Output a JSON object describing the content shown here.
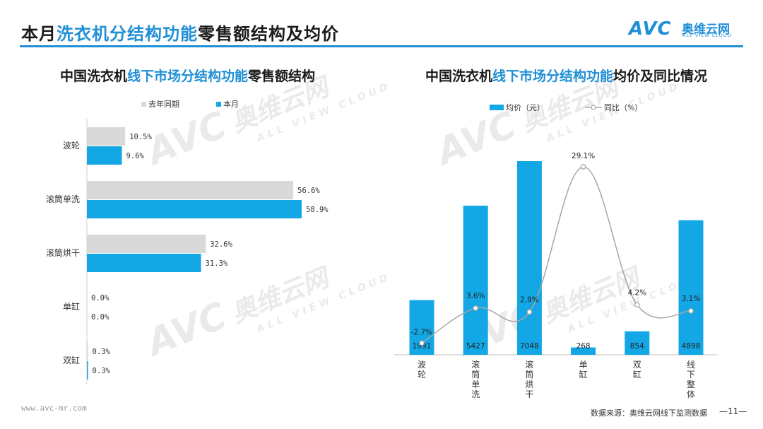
{
  "header": {
    "title_prefix": "本月",
    "title_highlight": "洗衣机分结构功能",
    "title_suffix": "零售额结构及均价"
  },
  "logo": {
    "brand": "AVC",
    "cn": "奥维云网",
    "en": "ALL VIEW CLOUD"
  },
  "watermark": {
    "brand": "AVC",
    "cn": "奥维云网",
    "en": "ALL VIEW CLOUD"
  },
  "footer": {
    "url": "www.avc-mr.com",
    "source": "数据来源：奥维云网线下监测数据",
    "page": "—11—"
  },
  "colors": {
    "accent": "#1f8fd6",
    "bar_current": "#14a7e6",
    "bar_last_year": "#d9d9d9",
    "line_yoy": "#a6a6a6"
  },
  "chart_data": [
    {
      "type": "bar",
      "orientation": "horizontal",
      "title_prefix": "中国洗衣机",
      "title_highlight": "线下市场分结构功能",
      "title_suffix": "零售额结构",
      "categories": [
        "波轮",
        "滚筒单洗",
        "滚筒烘干",
        "单缸",
        "双缸"
      ],
      "series": [
        {
          "name": "去年同期",
          "values": [
            10.5,
            56.6,
            32.6,
            0.0,
            0.3
          ],
          "labels": [
            "10.5%",
            "56.6%",
            "32.6%",
            "0.0%",
            "0.3%"
          ]
        },
        {
          "name": "本月",
          "values": [
            9.6,
            58.9,
            31.3,
            0.0,
            0.3
          ],
          "labels": [
            "9.6%",
            "58.9%",
            "31.3%",
            "0.0%",
            "0.3%"
          ]
        }
      ],
      "xlim": [
        0,
        60
      ],
      "legend": "top"
    },
    {
      "type": "bar+line",
      "title_prefix": "中国洗衣机",
      "title_highlight": "线下市场分结构功能",
      "title_suffix": "均价及同比情况",
      "categories": [
        "波轮",
        "滚筒单洗",
        "滚筒烘干",
        "单缸",
        "双缸",
        "线下整体"
      ],
      "series": [
        {
          "name": "均价（元）",
          "type": "bar",
          "values": [
            1991,
            5427,
            7048,
            268,
            854,
            4898
          ],
          "labels": [
            "1991",
            "5427",
            "7048",
            "268",
            "854",
            "4898"
          ]
        },
        {
          "name": "同比（%）",
          "type": "line",
          "values": [
            -2.7,
            3.6,
            2.9,
            29.1,
            4.2,
            3.1
          ],
          "labels": [
            "-2.7%",
            "3.6%",
            "2.9%",
            "29.1%",
            "4.2%",
            "3.1%"
          ]
        }
      ],
      "ylim_bar": [
        0,
        7300
      ],
      "ylim_line": [
        -5,
        34
      ],
      "legend": "top"
    }
  ]
}
